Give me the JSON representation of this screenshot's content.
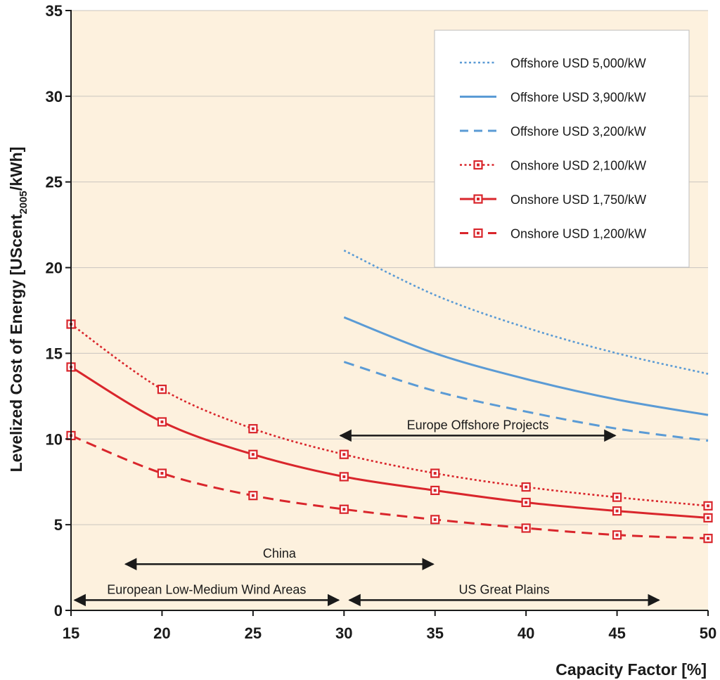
{
  "chart_data": {
    "type": "line",
    "title": "",
    "xlabel": "Capacity Factor [%]",
    "ylabel_parts": [
      "Levelized Cost of Energy [UScent",
      "2005",
      "/kWh]"
    ],
    "xlim": [
      15,
      50
    ],
    "ylim": [
      0,
      35
    ],
    "xticks": [
      15,
      20,
      25,
      30,
      35,
      40,
      45,
      50
    ],
    "yticks": [
      0,
      5,
      10,
      15,
      20,
      25,
      30,
      35
    ],
    "grid": "horizontal",
    "legend_position": "top-right",
    "background_color": "#fdf1de",
    "series": [
      {
        "name": "Offshore USD 5,000/kW",
        "color": "#5b9bd5",
        "style": "dotted",
        "marker": false,
        "x": [
          30,
          35,
          40,
          45,
          50
        ],
        "y": [
          21.0,
          18.4,
          16.5,
          15.0,
          13.8
        ]
      },
      {
        "name": "Offshore USD 3,900/kW",
        "color": "#5b9bd5",
        "style": "solid",
        "marker": false,
        "x": [
          30,
          35,
          40,
          45,
          50
        ],
        "y": [
          17.1,
          15.0,
          13.5,
          12.3,
          11.4
        ]
      },
      {
        "name": "Offshore USD 3,200/kW",
        "color": "#5b9bd5",
        "style": "dashed",
        "marker": false,
        "x": [
          30,
          35,
          40,
          45,
          50
        ],
        "y": [
          14.5,
          12.8,
          11.6,
          10.6,
          9.9
        ]
      },
      {
        "name": "Onshore USD 2,100/kW",
        "color": "#d9262c",
        "style": "dotted",
        "marker": true,
        "x": [
          15,
          20,
          25,
          30,
          35,
          40,
          45,
          50
        ],
        "y": [
          16.7,
          12.9,
          10.6,
          9.1,
          8.0,
          7.2,
          6.6,
          6.1
        ]
      },
      {
        "name": "Onshore USD 1,750/kW",
        "color": "#d9262c",
        "style": "solid",
        "marker": true,
        "x": [
          15,
          20,
          25,
          30,
          35,
          40,
          45,
          50
        ],
        "y": [
          14.2,
          11.0,
          9.1,
          7.8,
          7.0,
          6.3,
          5.8,
          5.4
        ]
      },
      {
        "name": "Onshore USD 1,200/kW",
        "color": "#d9262c",
        "style": "dashed",
        "marker": true,
        "x": [
          15,
          20,
          25,
          30,
          35,
          40,
          45,
          50
        ],
        "y": [
          10.2,
          8.0,
          6.7,
          5.9,
          5.3,
          4.8,
          4.4,
          4.2
        ]
      }
    ],
    "annotations": [
      {
        "label": "Europe Offshore Projects",
        "x_start": 29.8,
        "x_end": 44.9,
        "y": 10.2
      },
      {
        "label": "China",
        "x_start": 18.0,
        "x_end": 34.9,
        "y": 2.7
      },
      {
        "label": "European Low-Medium Wind Areas",
        "x_start": 15.2,
        "x_end": 29.7,
        "y": 0.6
      },
      {
        "label": "US Great Plains",
        "x_start": 30.3,
        "x_end": 47.3,
        "y": 0.6
      }
    ]
  }
}
